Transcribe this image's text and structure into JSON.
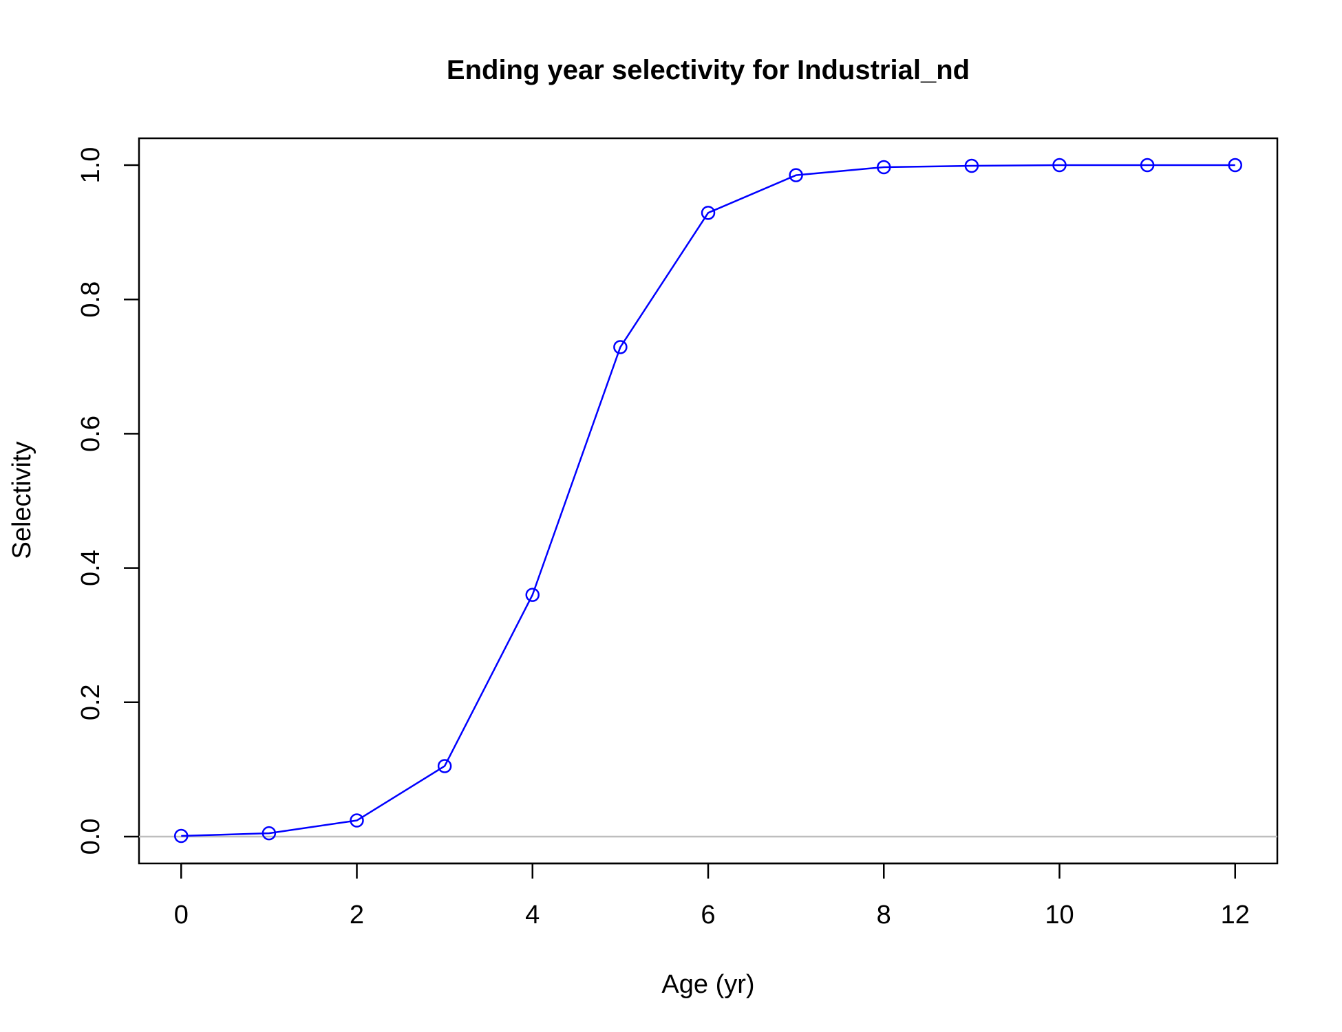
{
  "chart_data": {
    "type": "line",
    "title": "Ending year selectivity for Industrial_nd",
    "xlabel": "Age (yr)",
    "ylabel": "Selectivity",
    "xlim": [
      -0.48,
      12.48
    ],
    "ylim": [
      -0.04,
      1.04
    ],
    "x_ticks": [
      "0",
      "2",
      "4",
      "6",
      "8",
      "10",
      "12"
    ],
    "y_ticks": [
      "0.0",
      "0.2",
      "0.4",
      "0.6",
      "0.8",
      "1.0"
    ],
    "x": [
      0,
      1,
      2,
      3,
      4,
      5,
      6,
      7,
      8,
      9,
      10,
      11,
      12
    ],
    "series": [
      {
        "values": [
          0.001,
          0.005,
          0.024,
          0.105,
          0.36,
          0.729,
          0.929,
          0.985,
          0.997,
          0.999,
          1.0,
          1.0,
          1.0
        ]
      }
    ],
    "reference_line_y": 0,
    "grid": false,
    "legend": "none",
    "line_color": "#0000FF",
    "reference_line_color": "#BEBEBE"
  }
}
